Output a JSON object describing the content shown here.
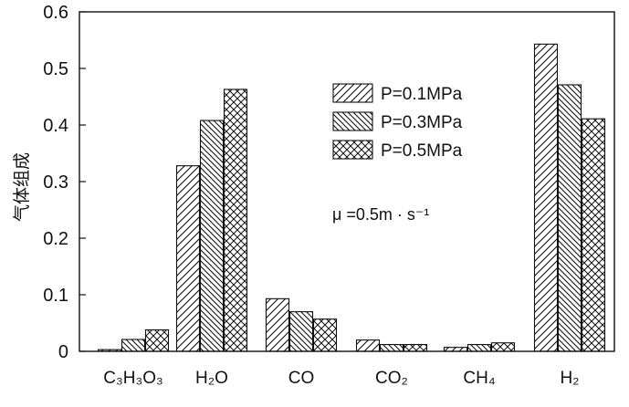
{
  "chart_data": {
    "type": "bar",
    "categories": [
      "C₃H₃O₃",
      "H₂O",
      "CO",
      "CO₂",
      "CH₄",
      "H₂"
    ],
    "series": [
      {
        "name": "P=0.1MPa",
        "pattern": "diagonal-right",
        "values": [
          0.003,
          0.328,
          0.093,
          0.02,
          0.007,
          0.543
        ]
      },
      {
        "name": "P=0.3MPa",
        "pattern": "diagonal-left",
        "values": [
          0.021,
          0.408,
          0.07,
          0.012,
          0.012,
          0.471
        ]
      },
      {
        "name": "P=0.5MPa",
        "pattern": "crosshatch",
        "values": [
          0.038,
          0.463,
          0.057,
          0.012,
          0.015,
          0.411
        ]
      }
    ],
    "ylabel": "气体组成",
    "xlabel": "",
    "ylim": [
      0,
      0.6
    ],
    "yticks": [
      "0",
      "0.1",
      "0.2",
      "0.3",
      "0.4",
      "0.5",
      "0.6"
    ],
    "annotation": "μ =0.5m · s⁻¹",
    "legend_position": "upper-right-inside",
    "grid": false,
    "colors": {
      "stroke": "#111111",
      "fill": "#ffffff"
    }
  }
}
